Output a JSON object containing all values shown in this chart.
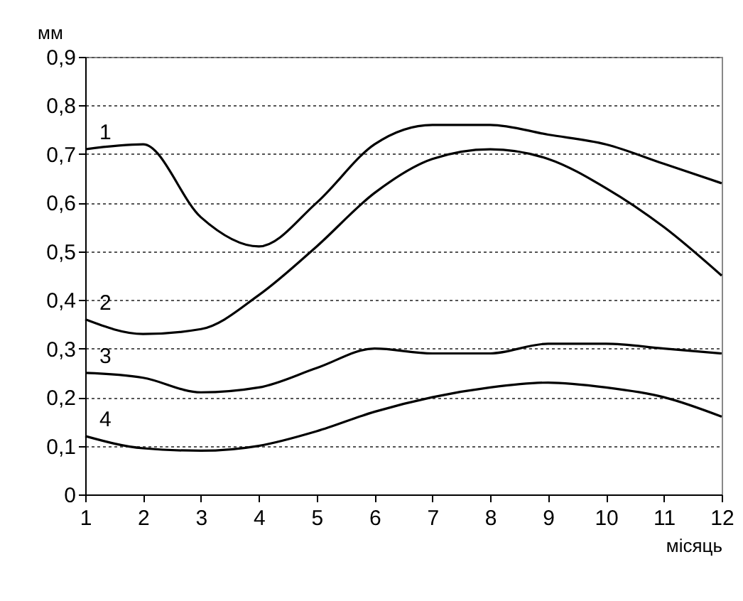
{
  "chart_data": {
    "type": "line",
    "xlabel": "місяць",
    "ylabel": "мм",
    "x": [
      1,
      2,
      3,
      4,
      5,
      6,
      7,
      8,
      9,
      10,
      11,
      12
    ],
    "xlim": [
      1,
      12
    ],
    "xticks": [
      1,
      2,
      3,
      4,
      5,
      6,
      7,
      8,
      9,
      10,
      11,
      12
    ],
    "ylim": [
      0,
      0.9
    ],
    "yticks": [
      0,
      {
        "value": 0.1,
        "label": "0,1"
      },
      {
        "value": 0.2,
        "label": "0,2"
      },
      {
        "value": 0.3,
        "label": "0,3"
      },
      {
        "value": 0.4,
        "label": "0,4"
      },
      {
        "value": 0.5,
        "label": "0,5"
      },
      {
        "value": 0.6,
        "label": "0,6"
      },
      {
        "value": 0.7,
        "label": "0,7"
      },
      {
        "value": 0.8,
        "label": "0,8"
      },
      {
        "value": 0.9,
        "label": "0,9"
      }
    ],
    "grid": "y",
    "legend": false,
    "marker": "none",
    "line_style": "solid",
    "series": [
      {
        "name": "1",
        "color": "#000000",
        "values": [
          0.71,
          0.72,
          0.57,
          0.51,
          0.6,
          0.72,
          0.76,
          0.76,
          0.74,
          0.72,
          0.68,
          0.64
        ]
      },
      {
        "name": "2",
        "color": "#000000",
        "values": [
          0.36,
          0.33,
          0.34,
          0.41,
          0.51,
          0.62,
          0.69,
          0.71,
          0.69,
          0.63,
          0.55,
          0.45
        ]
      },
      {
        "name": "3",
        "color": "#000000",
        "values": [
          0.25,
          0.24,
          0.21,
          0.22,
          0.26,
          0.3,
          0.29,
          0.29,
          0.31,
          0.31,
          0.3,
          0.29
        ]
      },
      {
        "name": "4",
        "color": "#000000",
        "values": [
          0.12,
          0.095,
          0.09,
          0.1,
          0.13,
          0.17,
          0.2,
          0.22,
          0.23,
          0.22,
          0.2,
          0.16
        ]
      }
    ]
  }
}
